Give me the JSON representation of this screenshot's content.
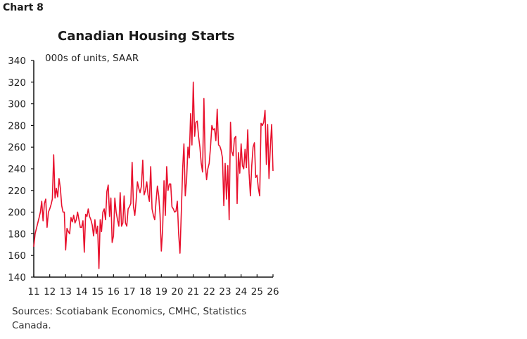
{
  "chart_label": "Chart 8",
  "chart_data": {
    "type": "line",
    "title": "Canadian Housing Starts",
    "ylabel": "000s of units, SAAR",
    "xlabel": "",
    "ylim": [
      140,
      340
    ],
    "y_ticks": [
      "140",
      "160",
      "180",
      "200",
      "220",
      "240",
      "260",
      "280",
      "300",
      "320",
      "340"
    ],
    "xlim": [
      2011,
      2026
    ],
    "x_ticks": [
      "11",
      "12",
      "13",
      "14",
      "15",
      "16",
      "17",
      "18",
      "19",
      "20",
      "21",
      "22",
      "23",
      "24",
      "25",
      "26"
    ],
    "grid": false,
    "line_color": "#e8112d",
    "values": [
      168,
      180,
      185,
      190,
      195,
      200,
      210,
      192,
      208,
      212,
      186,
      200,
      203,
      207,
      212,
      253,
      213,
      222,
      214,
      231,
      222,
      206,
      200,
      200,
      165,
      185,
      182,
      180,
      195,
      191,
      197,
      190,
      193,
      200,
      193,
      186,
      186,
      192,
      163,
      198,
      196,
      203,
      196,
      193,
      188,
      178,
      193,
      180,
      187,
      148,
      193,
      182,
      200,
      203,
      193,
      219,
      225,
      196,
      213,
      172,
      178,
      213,
      200,
      193,
      187,
      218,
      187,
      190,
      215,
      190,
      187,
      203,
      205,
      208,
      246,
      205,
      197,
      210,
      228,
      222,
      218,
      224,
      248,
      216,
      220,
      228,
      216,
      210,
      242,
      203,
      197,
      193,
      210,
      224,
      215,
      198,
      164,
      185,
      229,
      197,
      242,
      220,
      226,
      226,
      205,
      203,
      200,
      201,
      210,
      180,
      162,
      200,
      240,
      263,
      215,
      230,
      260,
      250,
      291,
      262,
      320,
      270,
      283,
      284,
      270,
      260,
      245,
      237,
      305,
      245,
      230,
      240,
      245,
      260,
      280,
      276,
      277,
      266,
      295,
      262,
      261,
      257,
      250,
      206,
      245,
      212,
      243,
      193,
      283,
      256,
      252,
      268,
      270,
      208,
      255,
      236,
      263,
      243,
      240,
      258,
      241,
      276,
      236,
      215,
      243,
      260,
      264,
      232,
      234,
      222,
      215,
      282,
      280,
      283,
      294,
      244,
      281,
      231,
      260,
      281,
      238
    ]
  },
  "sources": "Sources: Scotiabank Economics, CMHC, Statistics Canada."
}
